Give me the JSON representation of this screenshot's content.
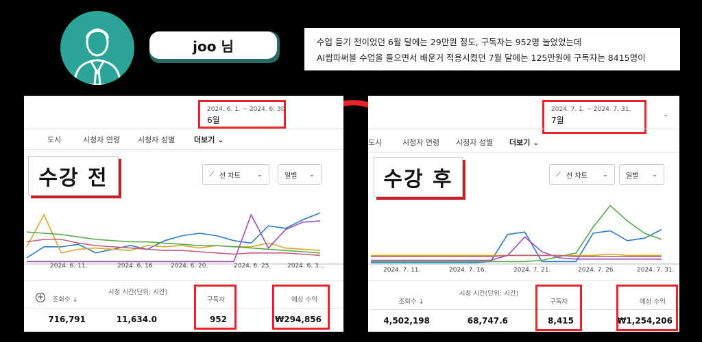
{
  "header": {
    "name": "joo 님",
    "quote_lines": [
      "수업 듣기 전이었던 6월 달에는 29만원 정도, 구독자는 952명 늘었었는데",
      "AI쌉파써블 수업을 들으면서 배운거 적용시켰던 7월 달에는 125만원에 구독자는 8415명이"
    ]
  },
  "before": {
    "badge": "수강 전",
    "date_range": "2024. 6. 1. ~ 2024. 6. 30.",
    "month": "6월",
    "tabs": [
      "도시",
      "시청자 연령",
      "시청자 성별",
      "더보기"
    ],
    "chart_select": "선 차트",
    "period_select": "일별",
    "stats": {
      "views_label": "조회수",
      "views": "716,791",
      "watch_label": "시청 시간(단위: 시간)",
      "watch": "11,634.0",
      "subs_label": "구독자",
      "subs": "952",
      "revenue_label": "예상 수익",
      "revenue": "₩294,856"
    }
  },
  "after": {
    "badge": "수강 후",
    "date_range": "2024. 7. 1. ~ 2024. 7. 31.",
    "month": "7월",
    "tabs": [
      "도시",
      "시청자 연령",
      "시청자 성별",
      "더보기"
    ],
    "chart_select": "선 차트",
    "period_select": "일별",
    "stats": {
      "views_label": "조회수",
      "views": "4,502,198",
      "watch_label": "시청 시간(단위: 시간)",
      "watch": "68,747.6",
      "subs_label": "구독자",
      "subs": "8,415",
      "revenue_label": "예상 수익",
      "revenue": "₩1,254,206"
    }
  },
  "chart_data": [
    {
      "type": "line",
      "x_ticks": [
        "2024. 6. 11.",
        "2024. 6. 16.",
        "2024. 6. 20.",
        "2024. 6. 25.",
        "2024. 6. 3..."
      ],
      "series": [
        {
          "color": "#2a7ac0",
          "values": [
            10,
            28,
            28,
            32,
            18,
            24,
            30,
            24,
            38,
            46,
            50,
            46,
            38,
            34,
            62,
            58,
            72,
            83
          ]
        },
        {
          "color": "#d8a52a",
          "values": [
            28,
            80,
            18,
            24,
            26,
            24,
            22,
            30,
            28,
            30,
            26,
            30,
            28,
            28,
            34,
            26,
            24,
            22
          ]
        },
        {
          "color": "#5aa84a",
          "values": [
            52,
            50,
            48,
            44,
            40,
            38,
            36,
            36,
            34,
            32,
            30,
            30,
            28,
            26,
            24,
            22,
            20,
            18
          ]
        },
        {
          "color": "#9c4dbf",
          "values": [
            4,
            4,
            4,
            4,
            4,
            4,
            4,
            4,
            4,
            4,
            4,
            4,
            4,
            80,
            26,
            56,
            68,
            70
          ]
        },
        {
          "color": "#c2607a",
          "values": [
            36,
            40,
            40,
            34,
            30,
            28,
            26,
            24,
            22,
            22,
            20,
            18,
            16,
            18,
            18,
            18,
            16,
            14
          ]
        }
      ]
    },
    {
      "type": "line",
      "x_ticks": [
        "2024. 7. 11.",
        "2024. 7. 16.",
        "2024. 7. 21.",
        "2024. 7. 26.",
        "2024. 7. 31."
      ],
      "series": [
        {
          "color": "#2a7ac0",
          "values": [
            2,
            2,
            2,
            2,
            2,
            2,
            2,
            4,
            48,
            52,
            4,
            4,
            4,
            50,
            54,
            38,
            42,
            56
          ]
        },
        {
          "color": "#5aa84a",
          "values": [
            4,
            4,
            4,
            4,
            4,
            4,
            4,
            4,
            4,
            4,
            6,
            12,
            18,
            60,
            95,
            70,
            50,
            40
          ]
        },
        {
          "color": "#9c4dbf",
          "values": [
            6,
            6,
            6,
            6,
            6,
            6,
            6,
            6,
            14,
            44,
            20,
            10,
            8,
            8,
            8,
            8,
            8,
            8
          ]
        },
        {
          "color": "#d8a52a",
          "values": [
            14,
            14,
            14,
            14,
            14,
            14,
            14,
            14,
            14,
            14,
            14,
            14,
            14,
            14,
            16,
            14,
            14,
            14
          ]
        },
        {
          "color": "#c2607a",
          "values": [
            12,
            12,
            12,
            12,
            12,
            12,
            12,
            12,
            14,
            14,
            14,
            14,
            12,
            12,
            12,
            12,
            12,
            12
          ]
        }
      ]
    }
  ]
}
